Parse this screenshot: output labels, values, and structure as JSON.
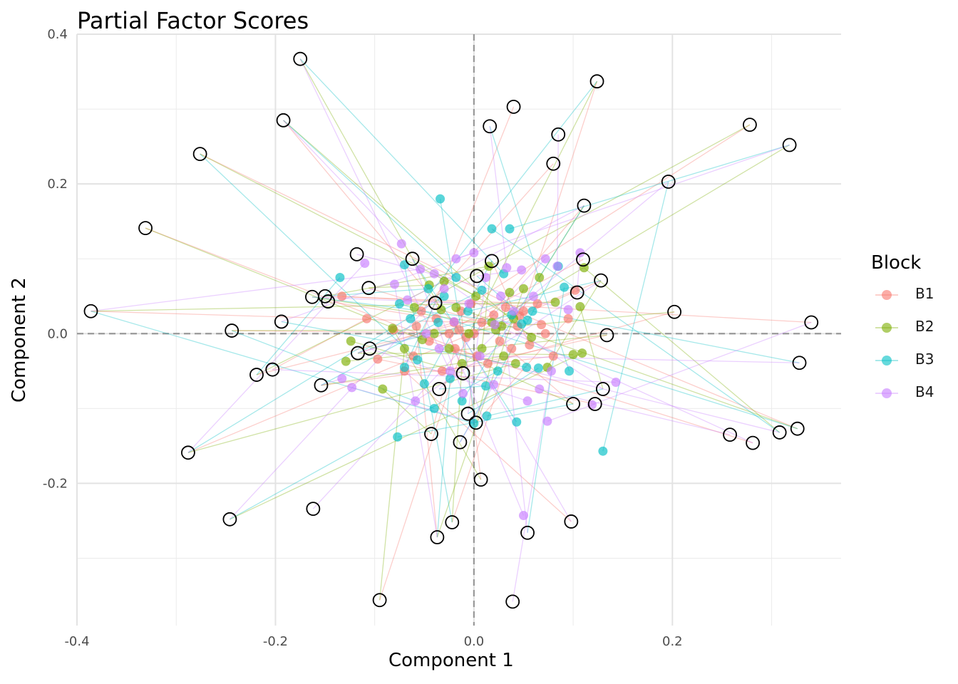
{
  "chart_data": {
    "type": "scatter",
    "title": "Partial Factor Scores",
    "xlabel": "Component 1",
    "ylabel": "Component 2",
    "xlim": [
      -0.4,
      0.37
    ],
    "ylim": [
      -0.39,
      0.4
    ],
    "x_ticks": [
      -0.4,
      -0.2,
      0.0,
      0.2
    ],
    "x_tick_labels": [
      "-0.4",
      "-0.2",
      "0.0",
      "0.2"
    ],
    "y_ticks": [
      -0.2,
      0.0,
      0.2,
      0.4
    ],
    "y_tick_labels": [
      "-0.2",
      "0.0",
      "0.2",
      "0.4"
    ],
    "reference_lines": {
      "x": 0,
      "y": 0,
      "style": "dashed"
    },
    "grid": true,
    "legend": {
      "title": "Block",
      "position": "right"
    },
    "series": [
      {
        "name": "B1",
        "color": "#F8766D"
      },
      {
        "name": "B2",
        "color": "#7CAE00"
      },
      {
        "name": "B3",
        "color": "#00BFC4"
      },
      {
        "name": "B4",
        "color": "#C77CFF"
      }
    ],
    "global_scores": [
      [
        -0.175,
        0.367
      ],
      [
        0.124,
        0.337
      ],
      [
        0.04,
        0.303
      ],
      [
        0.016,
        0.277
      ],
      [
        -0.192,
        0.285
      ],
      [
        0.278,
        0.279
      ],
      [
        0.085,
        0.266
      ],
      [
        0.318,
        0.252
      ],
      [
        -0.276,
        0.24
      ],
      [
        0.08,
        0.227
      ],
      [
        0.196,
        0.203
      ],
      [
        0.111,
        0.171
      ],
      [
        -0.331,
        0.141
      ],
      [
        -0.118,
        0.106
      ],
      [
        -0.062,
        0.1
      ],
      [
        0.018,
        0.097
      ],
      [
        0.11,
        0.099
      ],
      [
        0.003,
        0.077
      ],
      [
        0.128,
        0.071
      ],
      [
        -0.106,
        0.061
      ],
      [
        0.104,
        0.055
      ],
      [
        -0.163,
        0.049
      ],
      [
        -0.15,
        0.05
      ],
      [
        -0.147,
        0.043
      ],
      [
        -0.039,
        0.041
      ],
      [
        -0.386,
        0.03
      ],
      [
        0.202,
        0.029
      ],
      [
        0.34,
        0.015
      ],
      [
        -0.194,
        0.016
      ],
      [
        -0.244,
        0.004
      ],
      [
        0.134,
        -0.002
      ],
      [
        -0.105,
        -0.02
      ],
      [
        -0.117,
        -0.026
      ],
      [
        -0.219,
        -0.055
      ],
      [
        -0.203,
        -0.048
      ],
      [
        0.328,
        -0.039
      ],
      [
        -0.154,
        -0.069
      ],
      [
        -0.011,
        -0.053
      ],
      [
        -0.035,
        -0.074
      ],
      [
        0.13,
        -0.074
      ],
      [
        0.1,
        -0.094
      ],
      [
        0.122,
        -0.094
      ],
      [
        -0.006,
        -0.107
      ],
      [
        0.002,
        -0.119
      ],
      [
        -0.043,
        -0.134
      ],
      [
        0.258,
        -0.135
      ],
      [
        0.308,
        -0.132
      ],
      [
        0.326,
        -0.127
      ],
      [
        0.281,
        -0.146
      ],
      [
        -0.014,
        -0.145
      ],
      [
        -0.288,
        -0.159
      ],
      [
        0.007,
        -0.195
      ],
      [
        -0.162,
        -0.234
      ],
      [
        -0.246,
        -0.248
      ],
      [
        -0.022,
        -0.252
      ],
      [
        0.098,
        -0.251
      ],
      [
        0.054,
        -0.266
      ],
      [
        -0.037,
        -0.272
      ],
      [
        -0.095,
        -0.356
      ],
      [
        0.039,
        -0.358
      ]
    ],
    "partial_scores": [
      {
        "block": "B1",
        "points": [
          [
            -0.133,
            0.05
          ],
          [
            -0.108,
            0.02
          ],
          [
            -0.097,
            -0.034
          ],
          [
            -0.081,
            0.005
          ],
          [
            -0.07,
            -0.05
          ],
          [
            -0.061,
            -0.03
          ],
          [
            -0.053,
            0.03
          ],
          [
            -0.045,
            -0.01
          ],
          [
            -0.038,
            0.02
          ],
          [
            -0.032,
            -0.05
          ],
          [
            -0.025,
            0.0
          ],
          [
            -0.019,
            -0.02
          ],
          [
            -0.013,
            0.03
          ],
          [
            -0.008,
            -0.005
          ],
          [
            -0.003,
            0.04
          ],
          [
            0.003,
            -0.03
          ],
          [
            0.008,
            0.015
          ],
          [
            0.014,
            -0.04
          ],
          [
            0.02,
            0.025
          ],
          [
            0.026,
            -0.01
          ],
          [
            0.032,
            0.035
          ],
          [
            0.038,
            -0.02
          ],
          [
            0.044,
            0.01
          ],
          [
            0.05,
            0.03
          ],
          [
            0.056,
            -0.015
          ],
          [
            0.064,
            0.04
          ],
          [
            0.072,
            0.0
          ],
          [
            0.08,
            -0.03
          ],
          [
            0.095,
            0.02
          ],
          [
            0.102,
            0.058
          ],
          [
            -0.058,
            0.01
          ],
          [
            -0.015,
            0.005
          ],
          [
            0.0,
            0.0
          ],
          [
            0.046,
            0.024
          ],
          [
            0.068,
            0.012
          ],
          [
            -0.02,
            0.015
          ]
        ]
      },
      {
        "block": "B2",
        "points": [
          [
            -0.129,
            -0.037
          ],
          [
            -0.124,
            -0.01
          ],
          [
            -0.092,
            -0.074
          ],
          [
            -0.082,
            0.007
          ],
          [
            -0.07,
            -0.02
          ],
          [
            -0.06,
            0.035
          ],
          [
            -0.052,
            -0.008
          ],
          [
            -0.045,
            0.065
          ],
          [
            -0.04,
            0.0
          ],
          [
            -0.03,
            0.07
          ],
          [
            -0.025,
            -0.02
          ],
          [
            -0.018,
            0.035
          ],
          [
            -0.012,
            -0.04
          ],
          [
            -0.005,
            0.0
          ],
          [
            0.002,
            0.05
          ],
          [
            0.008,
            -0.02
          ],
          [
            0.015,
            0.09
          ],
          [
            0.022,
            0.005
          ],
          [
            0.03,
            -0.03
          ],
          [
            0.036,
            0.055
          ],
          [
            0.042,
            -0.04
          ],
          [
            0.05,
            0.06
          ],
          [
            0.058,
            -0.005
          ],
          [
            0.066,
            0.075
          ],
          [
            0.074,
            -0.045
          ],
          [
            0.082,
            0.042
          ],
          [
            0.1,
            -0.028
          ],
          [
            0.107,
            0.036
          ],
          [
            0.111,
            0.088
          ],
          [
            0.109,
            -0.026
          ],
          [
            -0.033,
            0.032
          ],
          [
            0.018,
            0.015
          ],
          [
            0.04,
            0.02
          ],
          [
            0.028,
            0.01
          ]
        ]
      },
      {
        "block": "B3",
        "points": [
          [
            -0.135,
            0.075
          ],
          [
            -0.077,
            -0.138
          ],
          [
            -0.075,
            0.04
          ],
          [
            -0.07,
            0.092
          ],
          [
            -0.064,
            0.02
          ],
          [
            -0.057,
            -0.035
          ],
          [
            -0.05,
            -0.067
          ],
          [
            -0.046,
            0.06
          ],
          [
            -0.04,
            -0.1
          ],
          [
            -0.036,
            0.015
          ],
          [
            -0.034,
            0.18
          ],
          [
            -0.03,
            0.05
          ],
          [
            -0.024,
            -0.06
          ],
          [
            -0.018,
            0.075
          ],
          [
            -0.012,
            -0.09
          ],
          [
            -0.006,
            0.03
          ],
          [
            0.0,
            -0.12
          ],
          [
            0.008,
            0.058
          ],
          [
            0.013,
            -0.11
          ],
          [
            0.018,
            0.14
          ],
          [
            0.024,
            -0.05
          ],
          [
            0.03,
            0.08
          ],
          [
            0.036,
            0.14
          ],
          [
            0.043,
            -0.118
          ],
          [
            0.048,
            0.013
          ],
          [
            0.053,
            -0.045
          ],
          [
            0.059,
            0.03
          ],
          [
            0.065,
            -0.046
          ],
          [
            0.085,
            0.09
          ],
          [
            0.091,
            0.062
          ],
          [
            0.096,
            -0.05
          ],
          [
            0.13,
            -0.157
          ],
          [
            0.054,
            0.018
          ],
          [
            -0.07,
            -0.045
          ],
          [
            0.038,
            0.025
          ],
          [
            0.012,
            -0.07
          ]
        ]
      },
      {
        "block": "B4",
        "points": [
          [
            -0.133,
            -0.06
          ],
          [
            -0.123,
            -0.072
          ],
          [
            -0.11,
            0.094
          ],
          [
            -0.08,
            0.066
          ],
          [
            -0.073,
            0.12
          ],
          [
            -0.067,
            0.045
          ],
          [
            -0.059,
            -0.09
          ],
          [
            -0.054,
            0.086
          ],
          [
            -0.048,
            0.0
          ],
          [
            -0.04,
            0.08
          ],
          [
            -0.035,
            -0.02
          ],
          [
            -0.03,
            0.06
          ],
          [
            -0.024,
            -0.05
          ],
          [
            -0.018,
            0.1
          ],
          [
            -0.011,
            -0.08
          ],
          [
            -0.005,
            0.04
          ],
          [
            0.0,
            0.108
          ],
          [
            0.006,
            -0.03
          ],
          [
            0.012,
            0.075
          ],
          [
            0.02,
            -0.068
          ],
          [
            0.027,
            0.05
          ],
          [
            0.033,
            0.088
          ],
          [
            0.04,
            0.03
          ],
          [
            0.048,
            0.085
          ],
          [
            0.05,
            -0.243
          ],
          [
            0.054,
            -0.09
          ],
          [
            0.06,
            0.05
          ],
          [
            0.066,
            -0.074
          ],
          [
            0.072,
            0.1
          ],
          [
            0.078,
            -0.05
          ],
          [
            0.084,
            0.09
          ],
          [
            0.095,
            0.032
          ],
          [
            0.107,
            0.108
          ],
          [
            0.119,
            -0.095
          ],
          [
            0.143,
            -0.065
          ],
          [
            0.074,
            -0.117
          ],
          [
            0.021,
            0.012
          ],
          [
            -0.02,
            0.016
          ]
        ]
      }
    ]
  }
}
